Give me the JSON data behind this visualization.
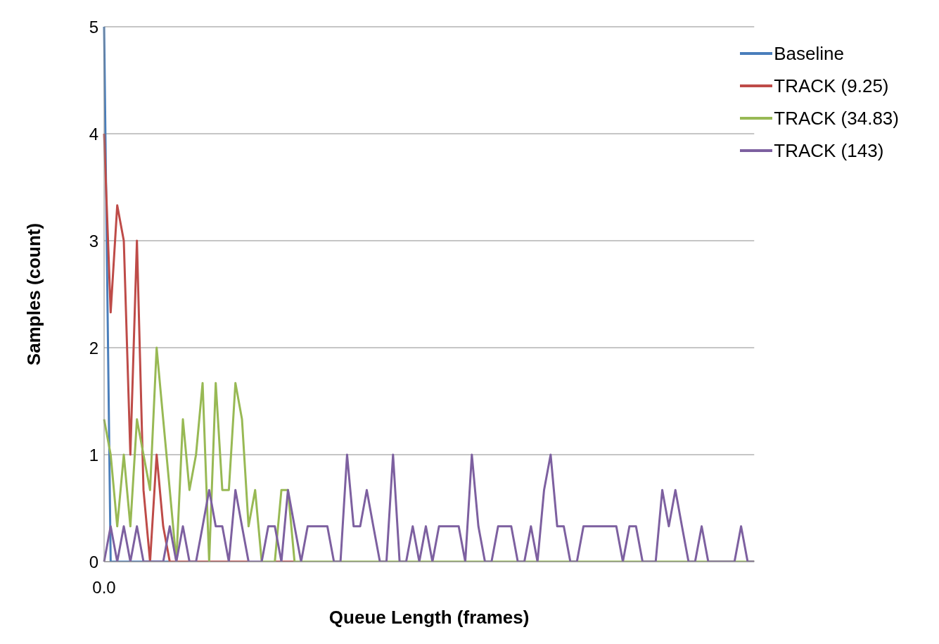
{
  "chart_data": {
    "type": "line",
    "xlabel": "Queue Length (frames)",
    "ylabel": "Samples (count)",
    "categories": [
      "0.0",
      null,
      null,
      null,
      null,
      null,
      null,
      null,
      null,
      null,
      null,
      null,
      null,
      null,
      null,
      null,
      null,
      null,
      null,
      null,
      null,
      null,
      null,
      null,
      null,
      null,
      null,
      null,
      null,
      null,
      null,
      null,
      null,
      null,
      null,
      null,
      null,
      null,
      null,
      null,
      null,
      null,
      null,
      null,
      null,
      null,
      null,
      null,
      null,
      null,
      null,
      null,
      null,
      null,
      null,
      null,
      null,
      null,
      null,
      null,
      null,
      null,
      null,
      null,
      null,
      null,
      null,
      null,
      null,
      null,
      null,
      null,
      null,
      null,
      null,
      null,
      null,
      null,
      null,
      null,
      null,
      null,
      null,
      null,
      null,
      null,
      null,
      null,
      null,
      null,
      null,
      null,
      null,
      null,
      null,
      null,
      null,
      null,
      null,
      null
    ],
    "ylim": [
      0,
      5
    ],
    "yticks": [
      0,
      1,
      2,
      3,
      4,
      5
    ],
    "grid": "y",
    "legend": "top right",
    "marker": "none",
    "line_style": "solid",
    "series": [
      {
        "name": "Baseline",
        "color": "#4a7ebb",
        "values": [
          5,
          0,
          0,
          0,
          0,
          0,
          0,
          0,
          0,
          0,
          0,
          null,
          null,
          null,
          null,
          null,
          null,
          null,
          null,
          null,
          null,
          null,
          null,
          null,
          null,
          null,
          null,
          null,
          null,
          null,
          null,
          null,
          null,
          null,
          null,
          null,
          null,
          null,
          null,
          null,
          null,
          null,
          null,
          null,
          null,
          null,
          null,
          null,
          null,
          null,
          null,
          null,
          null,
          null,
          null,
          null,
          null,
          null,
          null,
          null,
          null,
          null,
          null,
          null,
          null,
          null,
          null,
          null,
          null,
          null,
          null,
          null,
          null,
          null,
          null,
          null,
          null,
          null,
          null,
          null,
          null,
          null,
          null,
          null,
          null,
          null,
          null,
          null,
          null,
          null,
          null,
          null,
          null,
          null,
          null,
          null,
          null,
          null,
          null,
          null
        ]
      },
      {
        "name": "TRACK (9.25)",
        "color": "#be4b48",
        "values": [
          4,
          2.33,
          3.33,
          3,
          1,
          3,
          0.67,
          0,
          1,
          0.33,
          0,
          0,
          0,
          0,
          0,
          0,
          0,
          0,
          0,
          0,
          0,
          0,
          0,
          null,
          null,
          null,
          0,
          0,
          0,
          0,
          null,
          null,
          null,
          null,
          null,
          null,
          null,
          null,
          null,
          null,
          null,
          null,
          null,
          null,
          null,
          null,
          null,
          null,
          null,
          null,
          null,
          null,
          null,
          null,
          null,
          null,
          null,
          null,
          null,
          null,
          null,
          null,
          null,
          null,
          null,
          null,
          null,
          null,
          null,
          null,
          null,
          null,
          null,
          null,
          null,
          null,
          null,
          null,
          null,
          null,
          null,
          null,
          null,
          null,
          null,
          null,
          null,
          null,
          null,
          null,
          null,
          null,
          null,
          null,
          null,
          null,
          null,
          null,
          null,
          null
        ]
      },
      {
        "name": "TRACK (34.83)",
        "color": "#98b954",
        "values": [
          1.33,
          1,
          0.33,
          1,
          0.33,
          1.33,
          1,
          0.67,
          2,
          1.33,
          0.67,
          0,
          1.33,
          0.67,
          1,
          1.67,
          0,
          1.67,
          0.67,
          0.67,
          1.67,
          1.33,
          0.33,
          0.67,
          0,
          0,
          0,
          0.67,
          0.67,
          0,
          0,
          0,
          0,
          0,
          0,
          0,
          0,
          0,
          0,
          0,
          0,
          0,
          0,
          0,
          0,
          0,
          0,
          0,
          0,
          0,
          0,
          0,
          0,
          0,
          0,
          0,
          0,
          0,
          0,
          0,
          0,
          0,
          0,
          0,
          0,
          0,
          0,
          0,
          0,
          0,
          0,
          0,
          0,
          0,
          0,
          0,
          0,
          0,
          0,
          0,
          0,
          0,
          0,
          0,
          0,
          0,
          0,
          0,
          0,
          0,
          0,
          0,
          0,
          0,
          0,
          0,
          0,
          0,
          0,
          0
        ]
      },
      {
        "name": "TRACK (143)",
        "color": "#7d60a0",
        "values": [
          0,
          0.33,
          0,
          0.33,
          0,
          0.33,
          0,
          0,
          0,
          0,
          0.33,
          0,
          0.33,
          0,
          0,
          0.33,
          0.67,
          0.33,
          0.33,
          0,
          0.67,
          0.33,
          0,
          0,
          0,
          0.33,
          0.33,
          0,
          0.67,
          0.33,
          0,
          0.33,
          0.33,
          0.33,
          0.33,
          0,
          0,
          1,
          0.33,
          0.33,
          0.67,
          0.33,
          0,
          0,
          1,
          0,
          0,
          0.33,
          0,
          0.33,
          0,
          0.33,
          0.33,
          0.33,
          0.33,
          0,
          1,
          0.33,
          0,
          0,
          0.33,
          0.33,
          0.33,
          0,
          0,
          0.33,
          0,
          0.67,
          1,
          0.33,
          0.33,
          0,
          0,
          0.33,
          0.33,
          0.33,
          0.33,
          0.33,
          0.33,
          0,
          0.33,
          0.33,
          0,
          0,
          0,
          0.67,
          0.33,
          0.67,
          0.33,
          0,
          0,
          0.33,
          0,
          0,
          0,
          0,
          0,
          0.33,
          0,
          0
        ]
      }
    ]
  }
}
